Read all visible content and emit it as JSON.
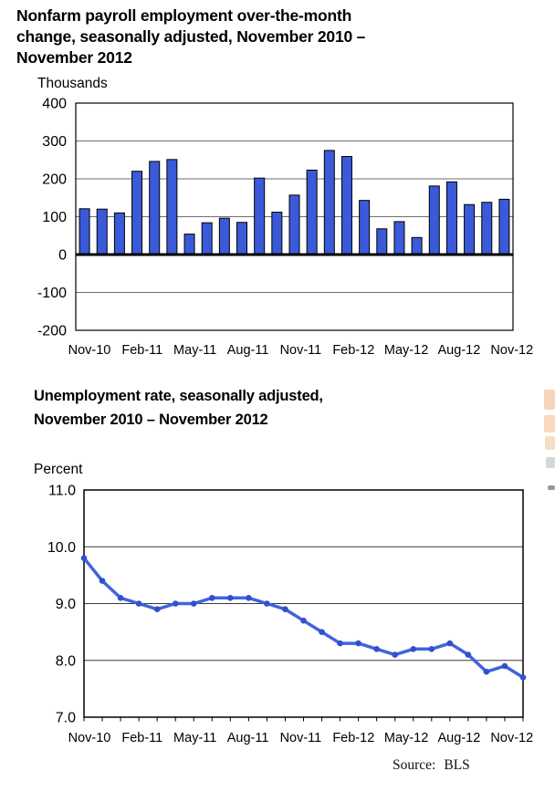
{
  "payroll_chart": {
    "title_lines": [
      "Nonfarm payroll employment over-the-month",
      "change, seasonally adjusted, November 2010 –",
      "November 2012"
    ],
    "unit_label": "Thousands"
  },
  "unemployment_chart": {
    "title_lines": [
      "Unemployment rate, seasonally adjusted,",
      "November 2010 – November 2012"
    ],
    "unit_label": "Percent"
  },
  "source_note": {
    "label": "Source:",
    "value": "BLS"
  },
  "colors": {
    "bar_fill": "#3B5AD9",
    "bar_outline": "#000000",
    "line": "#4263DC",
    "marker": "#3151CC",
    "grid": "#6e6e6e",
    "axis": "#000000"
  },
  "chart_data": [
    {
      "type": "bar",
      "title": "Nonfarm payroll employment over-the-month change, seasonally adjusted, November 2010 – November 2012",
      "xlabel": "",
      "ylabel": "Thousands",
      "ylim": [
        -200,
        400
      ],
      "grid": true,
      "legend": "none",
      "bar_color": "#3B5AD9",
      "y_tick_labels": [
        "400",
        "300",
        "200",
        "100",
        "0",
        "-100",
        "-200"
      ],
      "x_tick_labels": [
        "Nov-10",
        "Feb-11",
        "May-11",
        "Aug-11",
        "Nov-11",
        "Feb-12",
        "May-12",
        "Aug-12",
        "Nov-12"
      ],
      "categories": [
        "Nov-10",
        "Dec-10",
        "Jan-11",
        "Feb-11",
        "Mar-11",
        "Apr-11",
        "May-11",
        "Jun-11",
        "Jul-11",
        "Aug-11",
        "Sep-11",
        "Oct-11",
        "Nov-11",
        "Dec-11",
        "Jan-12",
        "Feb-12",
        "Mar-12",
        "Apr-12",
        "May-12",
        "Jun-12",
        "Jul-12",
        "Aug-12",
        "Sep-12",
        "Oct-12",
        "Nov-12"
      ],
      "values": [
        121,
        120,
        110,
        220,
        246,
        251,
        54,
        84,
        96,
        85,
        202,
        112,
        157,
        223,
        275,
        259,
        143,
        68,
        87,
        45,
        181,
        192,
        132,
        138,
        146
      ]
    },
    {
      "type": "line",
      "title": "Unemployment rate, seasonally adjusted, November 2010 – November 2012",
      "xlabel": "",
      "ylabel": "Percent",
      "ylim": [
        7.0,
        11.0
      ],
      "grid": true,
      "legend": "none",
      "line_color": "#4263DC",
      "marker": "circle",
      "marker_color": "#3151CC",
      "y_tick_labels": [
        "11.0",
        "10.0",
        "9.0",
        "8.0",
        "7.0"
      ],
      "x_tick_labels": [
        "Nov-10",
        "Feb-11",
        "May-11",
        "Aug-11",
        "Nov-11",
        "Feb-12",
        "May-12",
        "Aug-12",
        "Nov-12"
      ],
      "categories": [
        "Nov-10",
        "Dec-10",
        "Jan-11",
        "Feb-11",
        "Mar-11",
        "Apr-11",
        "May-11",
        "Jun-11",
        "Jul-11",
        "Aug-11",
        "Sep-11",
        "Oct-11",
        "Nov-11",
        "Dec-11",
        "Jan-12",
        "Feb-12",
        "Mar-12",
        "Apr-12",
        "May-12",
        "Jun-12",
        "Jul-12",
        "Aug-12",
        "Sep-12",
        "Oct-12",
        "Nov-12"
      ],
      "values": [
        9.8,
        9.4,
        9.1,
        9.0,
        8.9,
        9.0,
        9.0,
        9.1,
        9.1,
        9.1,
        9.0,
        8.9,
        8.7,
        8.5,
        8.3,
        8.3,
        8.2,
        8.1,
        8.2,
        8.2,
        8.3,
        8.1,
        7.8,
        7.9,
        7.7
      ]
    }
  ]
}
